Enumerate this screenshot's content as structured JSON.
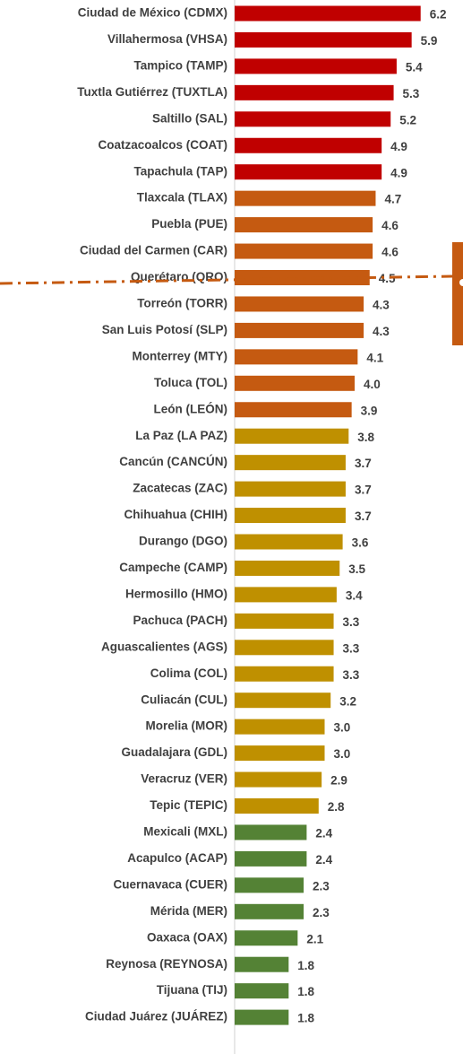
{
  "chart_data": {
    "type": "bar",
    "orientation": "horizontal",
    "categories": [
      "Ciudad de México (CDMX)",
      "Villahermosa (VHSA)",
      "Tampico (TAMP)",
      "Tuxtla Gutiérrez (TUXTLA)",
      "Saltillo (SAL)",
      "Coatzacoalcos (COAT)",
      "Tapachula (TAP)",
      "Tlaxcala (TLAX)",
      "Puebla (PUE)",
      "Ciudad del Carmen (CAR)",
      "Querétaro (QRO)",
      "Torreón (TORR)",
      "San Luis Potosí (SLP)",
      "Monterrey (MTY)",
      "Toluca (TOL)",
      "León (LEÓN)",
      "La Paz (LA PAZ)",
      "Cancún (CANCÚN)",
      "Zacatecas (ZAC)",
      "Chihuahua (CHIH)",
      "Durango (DGO)",
      "Campeche (CAMP)",
      "Hermosillo (HMO)",
      "Pachuca (PACH)",
      "Aguascalientes (AGS)",
      "Colima (COL)",
      "Culiacán (CUL)",
      "Morelia (MOR)",
      "Guadalajara (GDL)",
      "Veracruz (VER)",
      "Tepic (TEPIC)",
      "Mexicali (MXL)",
      "Acapulco (ACAP)",
      "Cuernavaca (CUER)",
      "Mérida (MER)",
      "Oaxaca (OAX)",
      "Reynosa (REYNOSA)",
      "Tijuana (TIJ)",
      "Ciudad Juárez (JUÁREZ)"
    ],
    "values": [
      6.2,
      5.9,
      5.4,
      5.3,
      5.2,
      4.9,
      4.9,
      4.7,
      4.6,
      4.6,
      4.5,
      4.3,
      4.3,
      4.1,
      4.0,
      3.9,
      3.8,
      3.7,
      3.7,
      3.7,
      3.6,
      3.5,
      3.4,
      3.3,
      3.3,
      3.3,
      3.2,
      3.0,
      3.0,
      2.9,
      2.8,
      2.4,
      2.4,
      2.3,
      2.3,
      2.1,
      1.8,
      1.8,
      1.8
    ],
    "value_labels": [
      "6.2",
      "5.9",
      "5.4",
      "5.3",
      "5.2",
      "4.9",
      "4.9",
      "4.7",
      "4.6",
      "4.6",
      "4.5",
      "4.3",
      "4.3",
      "4.1",
      "4.0",
      "3.9",
      "3.8",
      "3.7",
      "3.7",
      "3.7",
      "3.6",
      "3.5",
      "3.4",
      "3.3",
      "3.3",
      "3.3",
      "3.2",
      "3.0",
      "3.0",
      "2.9",
      "2.8",
      "2.4",
      "2.4",
      "2.3",
      "2.3",
      "2.1",
      "1.8",
      "1.8",
      "1.8"
    ],
    "colors": [
      "#c00000",
      "#c00000",
      "#c00000",
      "#c00000",
      "#c00000",
      "#c00000",
      "#c00000",
      "#c55a11",
      "#c55a11",
      "#c55a11",
      "#c55a11",
      "#c55a11",
      "#c55a11",
      "#c55a11",
      "#c55a11",
      "#c55a11",
      "#bf9000",
      "#bf9000",
      "#bf9000",
      "#bf9000",
      "#bf9000",
      "#bf9000",
      "#bf9000",
      "#bf9000",
      "#bf9000",
      "#bf9000",
      "#bf9000",
      "#bf9000",
      "#bf9000",
      "#bf9000",
      "#bf9000",
      "#548235",
      "#548235",
      "#548235",
      "#548235",
      "#548235",
      "#548235",
      "#548235",
      "#548235"
    ]
  }
}
